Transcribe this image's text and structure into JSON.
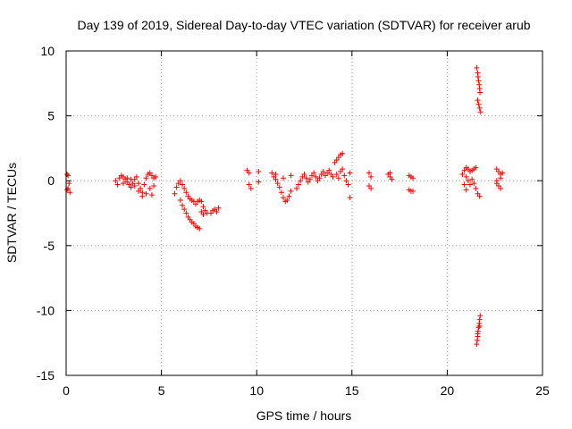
{
  "chart_data": {
    "type": "scatter",
    "title": "Day 139 of 2019, Sidereal Day-to-day VTEC variation (SDTVAR) for receiver arub",
    "xlabel": "GPS time / hours",
    "ylabel": "SDTVAR / TECUs",
    "xlim": [
      0,
      25
    ],
    "ylim": [
      -15,
      10
    ],
    "xticks": [
      0,
      5,
      10,
      15,
      20,
      25
    ],
    "yticks": [
      -15,
      -10,
      -5,
      0,
      5,
      10
    ],
    "xtick_labels": [
      "0",
      "5",
      "10",
      "15",
      "20",
      "25"
    ],
    "ytick_labels": [
      "-15",
      "-10",
      "-5",
      "0",
      "5",
      "10"
    ],
    "grid": true,
    "marker": "plus",
    "colors": {
      "series": "#ff0000",
      "axis": "#000000",
      "grid": "#a0a0a0"
    },
    "series": [
      {
        "name": "SDTVAR",
        "points": [
          [
            0.05,
            0.5
          ],
          [
            0.1,
            0.4
          ],
          [
            0.15,
            -0.2
          ],
          [
            0.1,
            -0.6
          ],
          [
            0.2,
            -0.9
          ],
          [
            0.05,
            -0.7
          ],
          [
            2.6,
            0.0
          ],
          [
            2.7,
            -0.3
          ],
          [
            2.8,
            0.2
          ],
          [
            2.9,
            0.4
          ],
          [
            3.0,
            0.3
          ],
          [
            3.1,
            0.1
          ],
          [
            3.2,
            -0.1
          ],
          [
            3.3,
            -0.3
          ],
          [
            3.4,
            -0.5
          ],
          [
            3.5,
            -0.2
          ],
          [
            3.6,
            0.1
          ],
          [
            3.7,
            0.3
          ],
          [
            3.8,
            -0.2
          ],
          [
            3.9,
            -0.6
          ],
          [
            4.0,
            -0.9
          ],
          [
            4.1,
            -0.3
          ],
          [
            4.2,
            0.2
          ],
          [
            4.3,
            0.5
          ],
          [
            4.4,
            0.6
          ],
          [
            4.5,
            0.4
          ],
          [
            4.6,
            0.2
          ],
          [
            4.7,
            0.3
          ],
          [
            3.0,
            -0.2
          ],
          [
            3.2,
            0.2
          ],
          [
            3.4,
            0.1
          ],
          [
            3.6,
            -0.4
          ],
          [
            3.8,
            -0.8
          ],
          [
            4.0,
            -1.2
          ],
          [
            4.2,
            -1.0
          ],
          [
            4.4,
            -0.6
          ],
          [
            4.5,
            -1.1
          ],
          [
            4.6,
            -0.4
          ],
          [
            5.7,
            -1.0
          ],
          [
            5.8,
            -0.5
          ],
          [
            5.9,
            -0.2
          ],
          [
            6.0,
            0.0
          ],
          [
            6.1,
            -0.3
          ],
          [
            6.2,
            -0.6
          ],
          [
            6.3,
            -0.9
          ],
          [
            6.4,
            -1.2
          ],
          [
            6.5,
            -1.4
          ],
          [
            6.6,
            -1.5
          ],
          [
            6.7,
            -1.6
          ],
          [
            6.8,
            -1.8
          ],
          [
            6.9,
            -1.6
          ],
          [
            7.0,
            -1.5
          ],
          [
            7.1,
            -1.6
          ],
          [
            7.2,
            -2.0
          ],
          [
            7.3,
            -2.3
          ],
          [
            7.4,
            -2.5
          ],
          [
            6.0,
            -1.5
          ],
          [
            6.1,
            -1.9
          ],
          [
            6.2,
            -2.2
          ],
          [
            6.3,
            -2.5
          ],
          [
            6.4,
            -2.8
          ],
          [
            6.5,
            -3.0
          ],
          [
            6.6,
            -3.2
          ],
          [
            6.7,
            -3.3
          ],
          [
            6.8,
            -3.5
          ],
          [
            6.9,
            -3.6
          ],
          [
            7.0,
            -3.7
          ],
          [
            7.1,
            -2.4
          ],
          [
            7.2,
            -2.6
          ],
          [
            7.6,
            -2.5
          ],
          [
            7.7,
            -2.3
          ],
          [
            7.8,
            -2.2
          ],
          [
            7.9,
            -2.4
          ],
          [
            8.0,
            -2.1
          ],
          [
            9.5,
            0.8
          ],
          [
            9.6,
            0.6
          ],
          [
            9.6,
            -0.3
          ],
          [
            9.7,
            -0.6
          ],
          [
            10.1,
            0.7
          ],
          [
            10.1,
            -0.1
          ],
          [
            10.8,
            0.6
          ],
          [
            10.9,
            0.3
          ],
          [
            11.0,
            0.1
          ],
          [
            11.1,
            -0.2
          ],
          [
            11.2,
            -0.5
          ],
          [
            11.3,
            -0.9
          ],
          [
            11.4,
            -1.3
          ],
          [
            11.5,
            -1.6
          ],
          [
            11.6,
            -1.5
          ],
          [
            11.7,
            -1.2
          ],
          [
            11.8,
            -0.8
          ],
          [
            11.0,
            0.5
          ],
          [
            11.4,
            0.2
          ],
          [
            11.8,
            0.4
          ],
          [
            12.1,
            -0.6
          ],
          [
            12.2,
            -0.3
          ],
          [
            12.3,
            0.0
          ],
          [
            12.4,
            0.3
          ],
          [
            12.5,
            0.5
          ],
          [
            12.6,
            0.2
          ],
          [
            12.7,
            -0.1
          ],
          [
            12.8,
            0.1
          ],
          [
            12.9,
            0.4
          ],
          [
            13.0,
            0.6
          ],
          [
            13.1,
            0.3
          ],
          [
            13.2,
            0.0
          ],
          [
            13.3,
            0.2
          ],
          [
            13.4,
            0.5
          ],
          [
            13.5,
            0.7
          ],
          [
            13.6,
            0.4
          ],
          [
            13.7,
            0.6
          ],
          [
            13.8,
            0.8
          ],
          [
            13.9,
            0.5
          ],
          [
            14.0,
            0.3
          ],
          [
            14.1,
            1.4
          ],
          [
            14.2,
            1.6
          ],
          [
            14.3,
            1.8
          ],
          [
            14.4,
            2.0
          ],
          [
            14.5,
            2.1
          ],
          [
            14.2,
            0.5
          ],
          [
            14.3,
            0.2
          ],
          [
            14.4,
            0.7
          ],
          [
            14.5,
            0.9
          ],
          [
            14.6,
            0.4
          ],
          [
            14.7,
            0.0
          ],
          [
            14.8,
            -0.3
          ],
          [
            14.9,
            0.6
          ],
          [
            14.9,
            -1.3
          ],
          [
            15.9,
            0.6
          ],
          [
            16.0,
            0.3
          ],
          [
            15.9,
            -0.4
          ],
          [
            16.0,
            -0.6
          ],
          [
            16.9,
            0.5
          ],
          [
            17.0,
            0.3
          ],
          [
            17.1,
            0.1
          ],
          [
            17.0,
            0.6
          ],
          [
            18.0,
            0.4
          ],
          [
            18.1,
            0.3
          ],
          [
            18.2,
            0.2
          ],
          [
            18.0,
            -0.7
          ],
          [
            18.1,
            -0.8
          ],
          [
            18.2,
            -0.8
          ],
          [
            20.8,
            0.5
          ],
          [
            20.9,
            0.8
          ],
          [
            21.0,
            1.0
          ],
          [
            21.1,
            0.9
          ],
          [
            21.2,
            0.7
          ],
          [
            21.3,
            0.8
          ],
          [
            21.4,
            0.9
          ],
          [
            21.5,
            1.0
          ],
          [
            21.0,
            0.3
          ],
          [
            21.1,
            0.0
          ],
          [
            21.2,
            -0.3
          ],
          [
            21.3,
            0.1
          ],
          [
            21.4,
            -0.2
          ],
          [
            21.5,
            -0.6
          ],
          [
            21.6,
            -1.0
          ],
          [
            21.7,
            -1.2
          ],
          [
            20.9,
            -0.3
          ],
          [
            21.0,
            -0.7
          ],
          [
            21.55,
            8.7
          ],
          [
            21.6,
            8.3
          ],
          [
            21.62,
            8.0
          ],
          [
            21.65,
            7.7
          ],
          [
            21.68,
            7.4
          ],
          [
            21.7,
            7.1
          ],
          [
            21.72,
            6.8
          ],
          [
            21.6,
            6.2
          ],
          [
            21.65,
            5.9
          ],
          [
            21.7,
            5.6
          ],
          [
            21.75,
            5.3
          ],
          [
            21.55,
            -12.6
          ],
          [
            21.58,
            -12.3
          ],
          [
            21.6,
            -12.0
          ],
          [
            21.62,
            -11.6
          ],
          [
            21.65,
            -11.3
          ],
          [
            21.68,
            -11.0
          ],
          [
            21.7,
            -10.7
          ],
          [
            21.73,
            -10.4
          ],
          [
            21.6,
            -11.8
          ],
          [
            21.7,
            -11.2
          ],
          [
            22.6,
            0.9
          ],
          [
            22.7,
            0.7
          ],
          [
            22.8,
            0.5
          ],
          [
            22.6,
            0.0
          ],
          [
            22.7,
            -0.4
          ],
          [
            22.8,
            -0.6
          ],
          [
            22.9,
            0.6
          ],
          [
            22.6,
            -0.2
          ],
          [
            22.8,
            0.2
          ]
        ]
      }
    ]
  }
}
